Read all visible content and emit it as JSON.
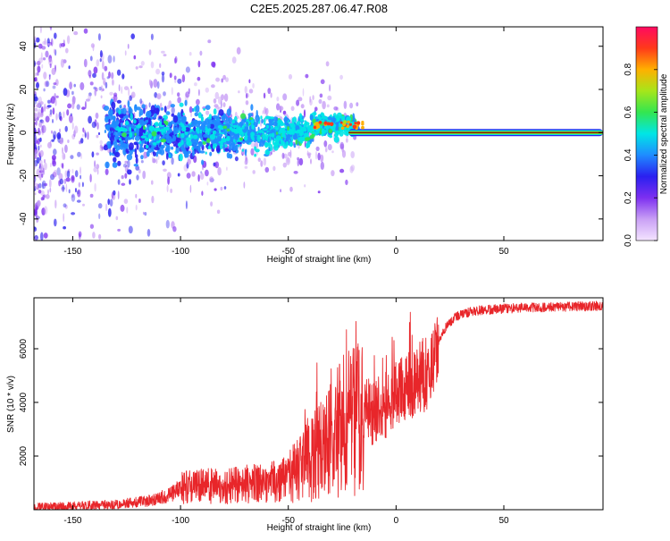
{
  "title": "C2E5.2025.287.06.47.R08",
  "colors": {
    "snr_line": "#e8262a",
    "colormap": [
      "#f4e4ff",
      "#c9a0f5",
      "#7d2ff0",
      "#2a20f0",
      "#1f8cff",
      "#00e6e6",
      "#33e650",
      "#a6e61a",
      "#ffb000",
      "#ff3a1a",
      "#ff0a60"
    ]
  },
  "chart_data": [
    {
      "type": "heatmap",
      "xlabel": "Height of straight line (km)",
      "ylabel": "Frequency (Hz)",
      "xlim": [
        -168,
        96
      ],
      "ylim": [
        -50,
        49
      ],
      "xticks": [
        -150,
        -100,
        -50,
        0,
        50
      ],
      "yticks": [
        -40,
        -20,
        0,
        20,
        40
      ],
      "xtick_labels": [
        "-150",
        "-100",
        "-50",
        "0",
        "50"
      ],
      "ytick_labels": [
        "-40",
        "-20",
        "0",
        "20",
        "40"
      ],
      "colorbar": {
        "label": "Normalized spectral amplitude",
        "range": [
          0,
          1
        ],
        "ticks": [
          0.0,
          0.2,
          0.4,
          0.6,
          0.8
        ],
        "tick_labels": [
          "0.0",
          "0.2",
          "0.4",
          "0.6",
          "0.8"
        ]
      }
    },
    {
      "type": "line",
      "xlabel": "Height of straight line (km)",
      "ylabel": "SNR (10 * v/v)",
      "xlim": [
        -168,
        96
      ],
      "ylim": [
        0,
        7900
      ],
      "xticks": [
        -150,
        -100,
        -50,
        0,
        50
      ],
      "yticks": [
        2000,
        4000,
        6000
      ],
      "xtick_labels": [
        "-150",
        "-100",
        "-50",
        "0",
        "50"
      ],
      "ytick_labels": [
        "2000",
        "4000",
        "6000"
      ],
      "series": [
        {
          "name": "SNR",
          "x": [
            -168,
            -150,
            -130,
            -115,
            -105,
            -100,
            -90,
            -80,
            -70,
            -60,
            -50,
            -45,
            -40,
            -35,
            -30,
            -27,
            -24,
            -20,
            -15,
            -10,
            -5,
            0,
            5,
            10,
            15,
            18,
            22,
            28,
            35,
            50,
            70,
            96
          ],
          "y": [
            100,
            140,
            200,
            320,
            550,
            800,
            900,
            850,
            950,
            1000,
            1200,
            1500,
            1900,
            2300,
            2500,
            2900,
            3200,
            3400,
            3600,
            3700,
            3900,
            4200,
            4500,
            4800,
            5200,
            5700,
            6700,
            7200,
            7400,
            7500,
            7550,
            7600
          ]
        }
      ]
    }
  ]
}
